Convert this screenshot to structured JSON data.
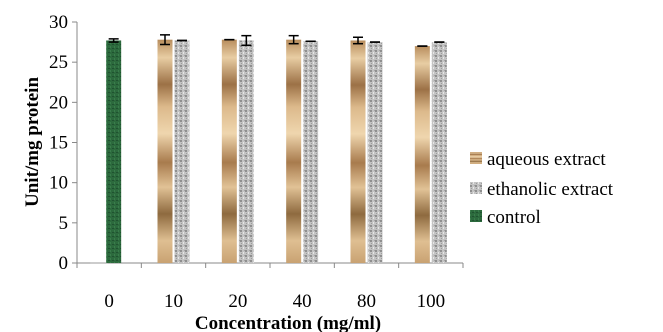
{
  "chart_data": {
    "type": "bar",
    "xlabel": "Concentration (mg/ml)",
    "ylabel": "Unit/mg protein",
    "ylim": [
      0,
      30
    ],
    "yticks": [
      0,
      5,
      10,
      15,
      20,
      25,
      30
    ],
    "categories": [
      "0",
      "10",
      "20",
      "40",
      "80",
      "100"
    ],
    "grid": false,
    "legend_position": "right",
    "series": [
      {
        "name": "aqueous extract",
        "values": [
          0,
          27.8,
          27.8,
          27.8,
          27.7,
          27.0
        ],
        "errors": [
          0,
          0.6,
          0.0,
          0.5,
          0.4,
          0.0
        ],
        "color": "#c49a6c"
      },
      {
        "name": "ethanolic extract",
        "values": [
          0,
          27.7,
          27.7,
          27.6,
          27.5,
          27.5
        ],
        "errors": [
          0,
          0.0,
          0.6,
          0.0,
          0.0,
          0.0
        ],
        "color": "#b8b8b8"
      },
      {
        "name": "control",
        "values": [
          27.7,
          null,
          null,
          null,
          null,
          null
        ],
        "errors": [
          0.2,
          null,
          null,
          null,
          null,
          null
        ],
        "color": "#2e6b3f"
      }
    ]
  }
}
